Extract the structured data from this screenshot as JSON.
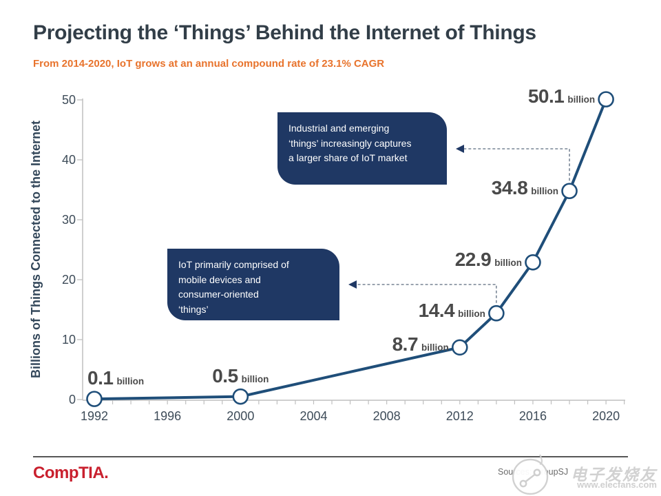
{
  "header": {
    "title": "Projecting the ‘Things’ Behind the Internet of Things",
    "subtitle": "From 2014-2020, IoT grows at an annual compound rate of 23.1% CAGR"
  },
  "chart_data": {
    "type": "line",
    "title": "Projecting the ‘Things’ Behind the Internet of Things",
    "subtitle": "From 2014-2020, IoT grows at an annual compound rate of 23.1% CAGR",
    "xlabel": "",
    "ylabel": "Billions of Things Connected  to the Internet",
    "x_ticks": [
      "1992",
      "1996",
      "2000",
      "2004",
      "2008",
      "2012",
      "2016",
      "2020"
    ],
    "x_minor_tick_step_years": 1,
    "x_axis_range": [
      1992,
      2021
    ],
    "y_ticks": [
      0,
      10,
      20,
      30,
      40,
      50
    ],
    "ylim": [
      0,
      50
    ],
    "grid": false,
    "legend": "none",
    "series": [
      {
        "name": "Billions of things connected to the Internet",
        "points": [
          {
            "x": 1992,
            "y": 0.1,
            "label": "0.1",
            "suffix": "billion"
          },
          {
            "x": 2000,
            "y": 0.5,
            "label": "0.5",
            "suffix": "billion"
          },
          {
            "x": 2012,
            "y": 8.7,
            "label": "8.7",
            "suffix": "billion"
          },
          {
            "x": 2014,
            "y": 14.4,
            "label": "14.4",
            "suffix": "billion"
          },
          {
            "x": 2016,
            "y": 22.9,
            "label": "22.9",
            "suffix": "billion"
          },
          {
            "x": 2018,
            "y": 34.8,
            "label": "34.8",
            "suffix": "billion"
          },
          {
            "x": 2020,
            "y": 50.1,
            "label": "50.1",
            "suffix": "billion"
          }
        ]
      }
    ],
    "annotations": [
      {
        "text": "Industrial and emerging\n‘things’ increasingly captures\na larger share of IoT market",
        "attached_to_x": 2018
      },
      {
        "text": "IoT primarily comprised of\nmobile devices and\nconsumer-oriented\n‘things’",
        "attached_to_x": 2014
      }
    ]
  },
  "footer": {
    "logo": "CompTIA.",
    "sources": "Sources: GroupSJ"
  },
  "watermark": {
    "chinese": "电子发烧友",
    "url": "www.elecfans.com"
  },
  "colors": {
    "line_navy": "#1F4E79",
    "callout_bg": "#1F3864",
    "connector": "#5A6B7E",
    "axis_gray": "#BFBFBF",
    "label_gray": "#4A4A4A",
    "tick_text": "#3E4C59",
    "accent_orange": "#E8732C",
    "comptia_red": "#C9202E",
    "watermark_gray": "#C9C9C9"
  }
}
